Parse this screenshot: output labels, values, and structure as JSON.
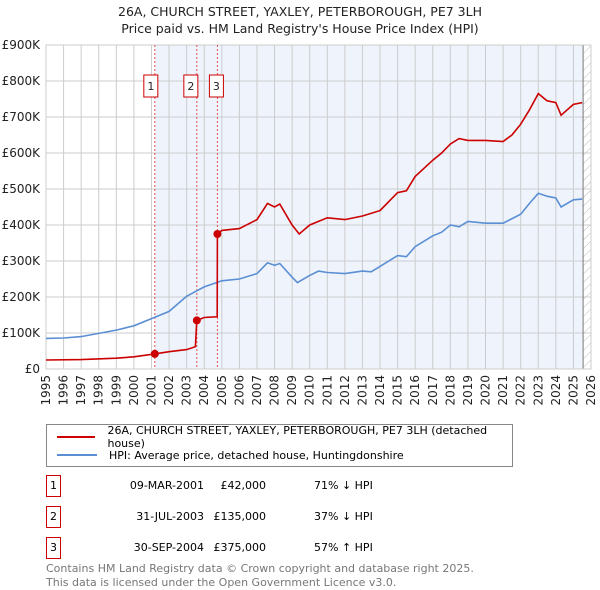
{
  "title": "26A, CHURCH STREET, YAXLEY, PETERBOROUGH, PE7 3LH",
  "subtitle": "Price paid vs. HM Land Registry's House Price Index (HPI)",
  "colors": {
    "property": "#cc0000",
    "hpi": "#5b8fd4",
    "shade": "#eef3fc"
  },
  "chart_data": {
    "type": "line",
    "xlim": [
      1995,
      2026
    ],
    "ylim": [
      0,
      900000
    ],
    "yticks": [
      0,
      100000,
      200000,
      300000,
      400000,
      500000,
      600000,
      700000,
      800000,
      900000
    ],
    "ytick_labels": [
      "£0",
      "£100K",
      "£200K",
      "£300K",
      "£400K",
      "£500K",
      "£600K",
      "£700K",
      "£800K",
      "£900K"
    ],
    "xticks": [
      "1995",
      "1996",
      "1997",
      "1998",
      "1999",
      "2000",
      "2001",
      "2002",
      "2003",
      "2004",
      "2005",
      "2006",
      "2007",
      "2008",
      "2009",
      "2010",
      "2011",
      "2012",
      "2013",
      "2014",
      "2015",
      "2016",
      "2017",
      "2018",
      "2019",
      "2020",
      "2021",
      "2022",
      "2023",
      "2024",
      "2025",
      "2026"
    ],
    "series": [
      {
        "name": "26A, CHURCH STREET, YAXLEY, PETERBOROUGH, PE7 3LH (detached house)",
        "color": "#cc0000",
        "x": [
          1995,
          1997,
          1999,
          2000,
          2001.19,
          2002,
          2003,
          2003.5,
          2003.58,
          2004,
          2004.74,
          2004.75,
          2005,
          2006,
          2007,
          2007.6,
          2008,
          2008.3,
          2009,
          2009.4,
          2010,
          2011,
          2012,
          2013,
          2014,
          2015,
          2015.5,
          2016,
          2017,
          2017.5,
          2018,
          2018.5,
          2019,
          2020,
          2021,
          2021.5,
          2022,
          2022.5,
          2023,
          2023.5,
          2024,
          2024.3,
          2025,
          2025.5
        ],
        "y": [
          25000,
          26000,
          30000,
          34000,
          42000,
          48000,
          54000,
          62000,
          135000,
          143000,
          145000,
          375000,
          385000,
          390000,
          415000,
          460000,
          450000,
          458000,
          400000,
          375000,
          400000,
          420000,
          415000,
          425000,
          440000,
          490000,
          495000,
          535000,
          580000,
          600000,
          625000,
          640000,
          635000,
          635000,
          632000,
          650000,
          680000,
          720000,
          765000,
          745000,
          740000,
          705000,
          735000,
          740000
        ]
      },
      {
        "name": "HPI: Average price, detached house, Huntingdonshire",
        "color": "#5b8fd4",
        "x": [
          1995,
          1996,
          1997,
          1998,
          1999,
          2000,
          2001,
          2002,
          2003,
          2003.5,
          2004,
          2004.7,
          2005,
          2006,
          2007,
          2007.6,
          2008,
          2008.3,
          2009,
          2009.3,
          2010,
          2010.5,
          2011,
          2012,
          2013,
          2013.5,
          2014,
          2015,
          2015.5,
          2016,
          2017,
          2017.5,
          2018,
          2018.5,
          2019,
          2020,
          2021,
          2022,
          2022.5,
          2023,
          2023.5,
          2024,
          2024.3,
          2025,
          2025.5
        ],
        "y": [
          85000,
          86000,
          90000,
          99000,
          108000,
          120000,
          140000,
          160000,
          202000,
          215000,
          228000,
          240000,
          245000,
          250000,
          265000,
          295000,
          288000,
          293000,
          255000,
          240000,
          260000,
          272000,
          268000,
          265000,
          272000,
          270000,
          285000,
          315000,
          312000,
          340000,
          370000,
          380000,
          400000,
          395000,
          410000,
          405000,
          405000,
          430000,
          460000,
          488000,
          480000,
          475000,
          450000,
          470000,
          472000
        ]
      }
    ],
    "sales": [
      {
        "label": "1",
        "x": 2001.19,
        "y": 42000
      },
      {
        "label": "2",
        "x": 2003.58,
        "y": 135000
      },
      {
        "label": "3",
        "x": 2004.75,
        "y": 375000
      }
    ],
    "data_end": 2025.55
  },
  "legend": {
    "property": "26A, CHURCH STREET, YAXLEY, PETERBOROUGH, PE7 3LH (detached house)",
    "hpi": "HPI: Average price, detached house, Huntingdonshire"
  },
  "transactions": [
    {
      "num": "1",
      "date": "09-MAR-2001",
      "price": "£42,000",
      "hpi": "71% ↓ HPI"
    },
    {
      "num": "2",
      "date": "31-JUL-2003",
      "price": "£135,000",
      "hpi": "37% ↓ HPI"
    },
    {
      "num": "3",
      "date": "30-SEP-2004",
      "price": "£375,000",
      "hpi": "57% ↑ HPI"
    }
  ],
  "footer": [
    "Contains HM Land Registry data © Crown copyright and database right 2025.",
    "This data is licensed under the Open Government Licence v3.0."
  ]
}
